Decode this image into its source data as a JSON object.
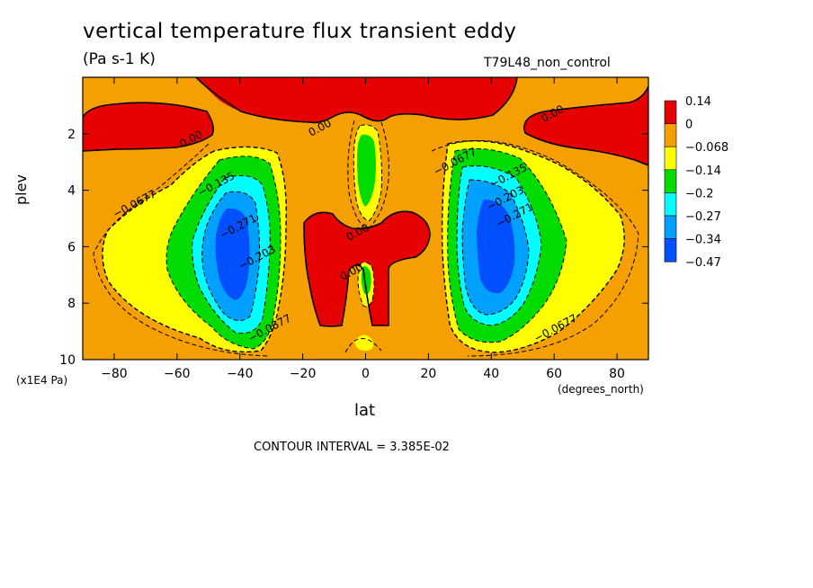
{
  "colors": {
    "red": "#e60000",
    "orange": "#f5a000",
    "yellow": "#ffff00",
    "green": "#00dc00",
    "cyan": "#00ffff",
    "lightblue": "#00a0ff",
    "blue": "#0050ff",
    "white": "#ffffff",
    "black": "#000000"
  },
  "chart_data": {
    "type": "heatmap",
    "title": "vertical temperature flux transient eddy",
    "subtitle": "(Pa s-1 K)",
    "run_label": "T79L48_non_control",
    "xlabel": "lat",
    "xunit": "(degrees_north)",
    "ylabel": "plev",
    "yunit": "(x1E4 Pa)",
    "xlim": [
      -90,
      90
    ],
    "ylim": [
      0,
      10
    ],
    "y_inverted": true,
    "x_ticks": [
      -80,
      -60,
      -40,
      -20,
      0,
      20,
      40,
      60,
      80
    ],
    "y_ticks": [
      2,
      4,
      6,
      8,
      10
    ],
    "contour_interval_text": "CONTOUR INTERVAL = 3.385E-02",
    "legend": {
      "placement": "right",
      "labels": [
        "0.14",
        "0",
        "-0.068",
        "-0.14",
        "-0.2",
        "-0.27",
        "-0.34",
        "-0.47"
      ],
      "colors": [
        "#e60000",
        "#f5a000",
        "#ffff00",
        "#00dc00",
        "#00ffff",
        "#00a0ff",
        "#0050ff"
      ]
    },
    "contour_labels": [
      {
        "text": "0.00",
        "x": -55,
        "y": 2.3
      },
      {
        "text": "0.00",
        "x": -14,
        "y": 1.9
      },
      {
        "text": "0.00",
        "x": 60,
        "y": 1.4
      },
      {
        "text": "0.00",
        "x": -2,
        "y": 5.6
      },
      {
        "text": "0.00",
        "x": -4,
        "y": 7.0
      },
      {
        "text": "-0.0677",
        "x": -73,
        "y": 4.6
      },
      {
        "text": "-0.135",
        "x": -47,
        "y": 3.9
      },
      {
        "text": "-0.271",
        "x": -40,
        "y": 5.4
      },
      {
        "text": "-0.203",
        "x": -34,
        "y": 6.5
      },
      {
        "text": "-0.0677",
        "x": -30,
        "y": 9.0
      },
      {
        "text": "-0.0677",
        "x": 29,
        "y": 3.1
      },
      {
        "text": "-0.135",
        "x": 46,
        "y": 3.6
      },
      {
        "text": "-0.203",
        "x": 45,
        "y": 4.4
      },
      {
        "text": "-0.271",
        "x": 48,
        "y": 5.0
      },
      {
        "text": "-0.0677",
        "x": 61,
        "y": 9.0
      }
    ]
  }
}
